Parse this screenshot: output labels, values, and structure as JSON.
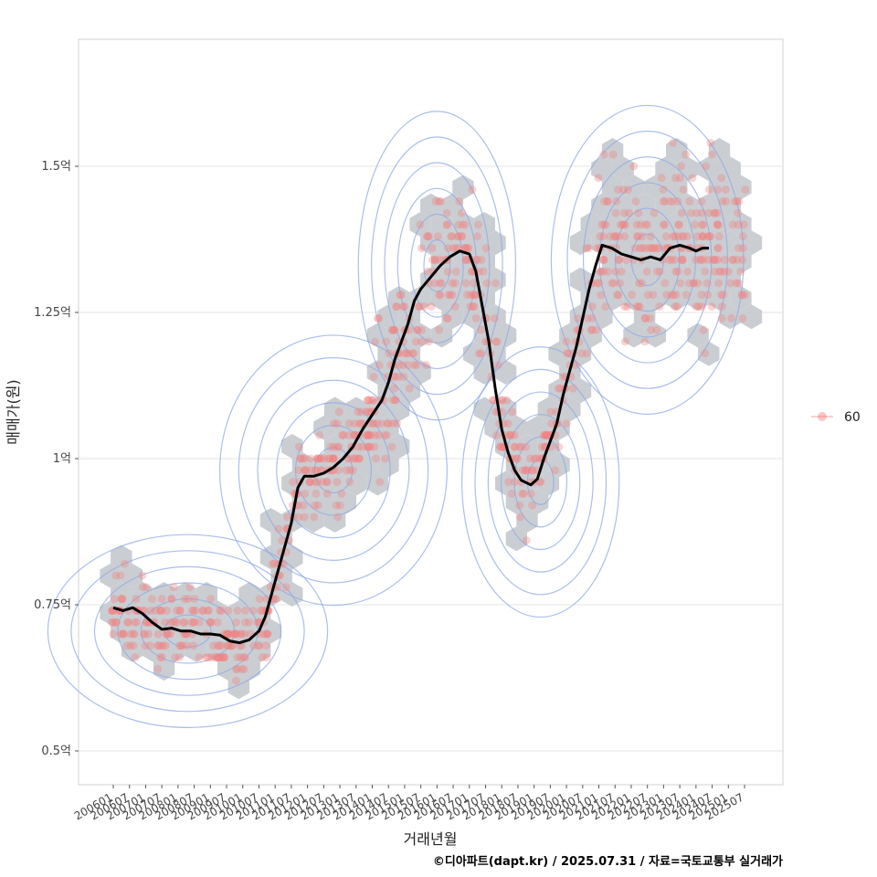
{
  "chart_data": {
    "type": "scatter",
    "title": "",
    "xlabel": "거래년월",
    "ylabel": "매매가(원)",
    "credit": "©디아파트(dapt.kr) / 2025.07.31 / 자료=국토교통부 실거래가",
    "legend": {
      "label": "60",
      "position": "right"
    },
    "ylim": [
      0.44,
      1.73
    ],
    "yticks": [
      {
        "value": 0.5,
        "label": "0.5억"
      },
      {
        "value": 0.75,
        "label": "0.75억"
      },
      {
        "value": 1.0,
        "label": "1억"
      },
      {
        "value": 1.25,
        "label": "1.25억"
      },
      {
        "value": 1.5,
        "label": "1.5억"
      }
    ],
    "xlim": [
      2005.33,
      2026.5
    ],
    "xticks": [
      "200601",
      "200607",
      "200701",
      "200707",
      "200801",
      "200807",
      "200901",
      "200907",
      "201001",
      "201007",
      "201101",
      "201107",
      "201201",
      "201207",
      "201301",
      "201307",
      "201401",
      "201407",
      "201501",
      "201507",
      "201601",
      "201607",
      "201701",
      "201707",
      "201801",
      "201807",
      "201901",
      "201907",
      "202001",
      "202007",
      "202101",
      "202107",
      "202201",
      "202207",
      "202301",
      "202307",
      "202401",
      "202407",
      "202501",
      "202507"
    ],
    "trend_line": {
      "name": "moving average",
      "color": "#000000",
      "points": [
        [
          2006.0,
          0.745
        ],
        [
          2006.3,
          0.74
        ],
        [
          2006.6,
          0.745
        ],
        [
          2006.9,
          0.735
        ],
        [
          2007.2,
          0.72
        ],
        [
          2007.5,
          0.708
        ],
        [
          2007.8,
          0.71
        ],
        [
          2008.1,
          0.705
        ],
        [
          2008.4,
          0.705
        ],
        [
          2008.7,
          0.7
        ],
        [
          2009.0,
          0.7
        ],
        [
          2009.3,
          0.698
        ],
        [
          2009.6,
          0.688
        ],
        [
          2009.9,
          0.685
        ],
        [
          2010.2,
          0.69
        ],
        [
          2010.5,
          0.705
        ],
        [
          2010.7,
          0.73
        ],
        [
          2010.9,
          0.77
        ],
        [
          2011.1,
          0.81
        ],
        [
          2011.3,
          0.85
        ],
        [
          2011.5,
          0.89
        ],
        [
          2011.7,
          0.95
        ],
        [
          2011.9,
          0.97
        ],
        [
          2012.2,
          0.97
        ],
        [
          2012.5,
          0.975
        ],
        [
          2012.8,
          0.985
        ],
        [
          2013.1,
          1.0
        ],
        [
          2013.4,
          1.02
        ],
        [
          2013.7,
          1.05
        ],
        [
          2014.0,
          1.075
        ],
        [
          2014.3,
          1.1
        ],
        [
          2014.5,
          1.13
        ],
        [
          2014.7,
          1.17
        ],
        [
          2014.9,
          1.2
        ],
        [
          2015.1,
          1.23
        ],
        [
          2015.3,
          1.27
        ],
        [
          2015.5,
          1.29
        ],
        [
          2015.8,
          1.31
        ],
        [
          2016.1,
          1.33
        ],
        [
          2016.4,
          1.345
        ],
        [
          2016.7,
          1.355
        ],
        [
          2017.0,
          1.35
        ],
        [
          2017.2,
          1.32
        ],
        [
          2017.4,
          1.26
        ],
        [
          2017.6,
          1.2
        ],
        [
          2017.8,
          1.12
        ],
        [
          2018.0,
          1.05
        ],
        [
          2018.2,
          1.01
        ],
        [
          2018.4,
          0.98
        ],
        [
          2018.6,
          0.963
        ],
        [
          2018.9,
          0.955
        ],
        [
          2019.1,
          0.965
        ],
        [
          2019.3,
          1.0
        ],
        [
          2019.5,
          1.03
        ],
        [
          2019.7,
          1.06
        ],
        [
          2019.9,
          1.11
        ],
        [
          2020.1,
          1.15
        ],
        [
          2020.3,
          1.19
        ],
        [
          2020.5,
          1.24
        ],
        [
          2020.7,
          1.29
        ],
        [
          2020.9,
          1.33
        ],
        [
          2021.1,
          1.365
        ],
        [
          2021.4,
          1.36
        ],
        [
          2021.7,
          1.35
        ],
        [
          2022.0,
          1.345
        ],
        [
          2022.3,
          1.34
        ],
        [
          2022.6,
          1.345
        ],
        [
          2022.9,
          1.34
        ],
        [
          2023.2,
          1.36
        ],
        [
          2023.5,
          1.365
        ],
        [
          2023.8,
          1.36
        ],
        [
          2024.0,
          1.355
        ],
        [
          2024.2,
          1.36
        ],
        [
          2024.4,
          1.36
        ]
      ]
    },
    "points_color": "#f08080",
    "hexbin_color": "#c4c9cd",
    "contour_color": "#8fa9e6"
  }
}
